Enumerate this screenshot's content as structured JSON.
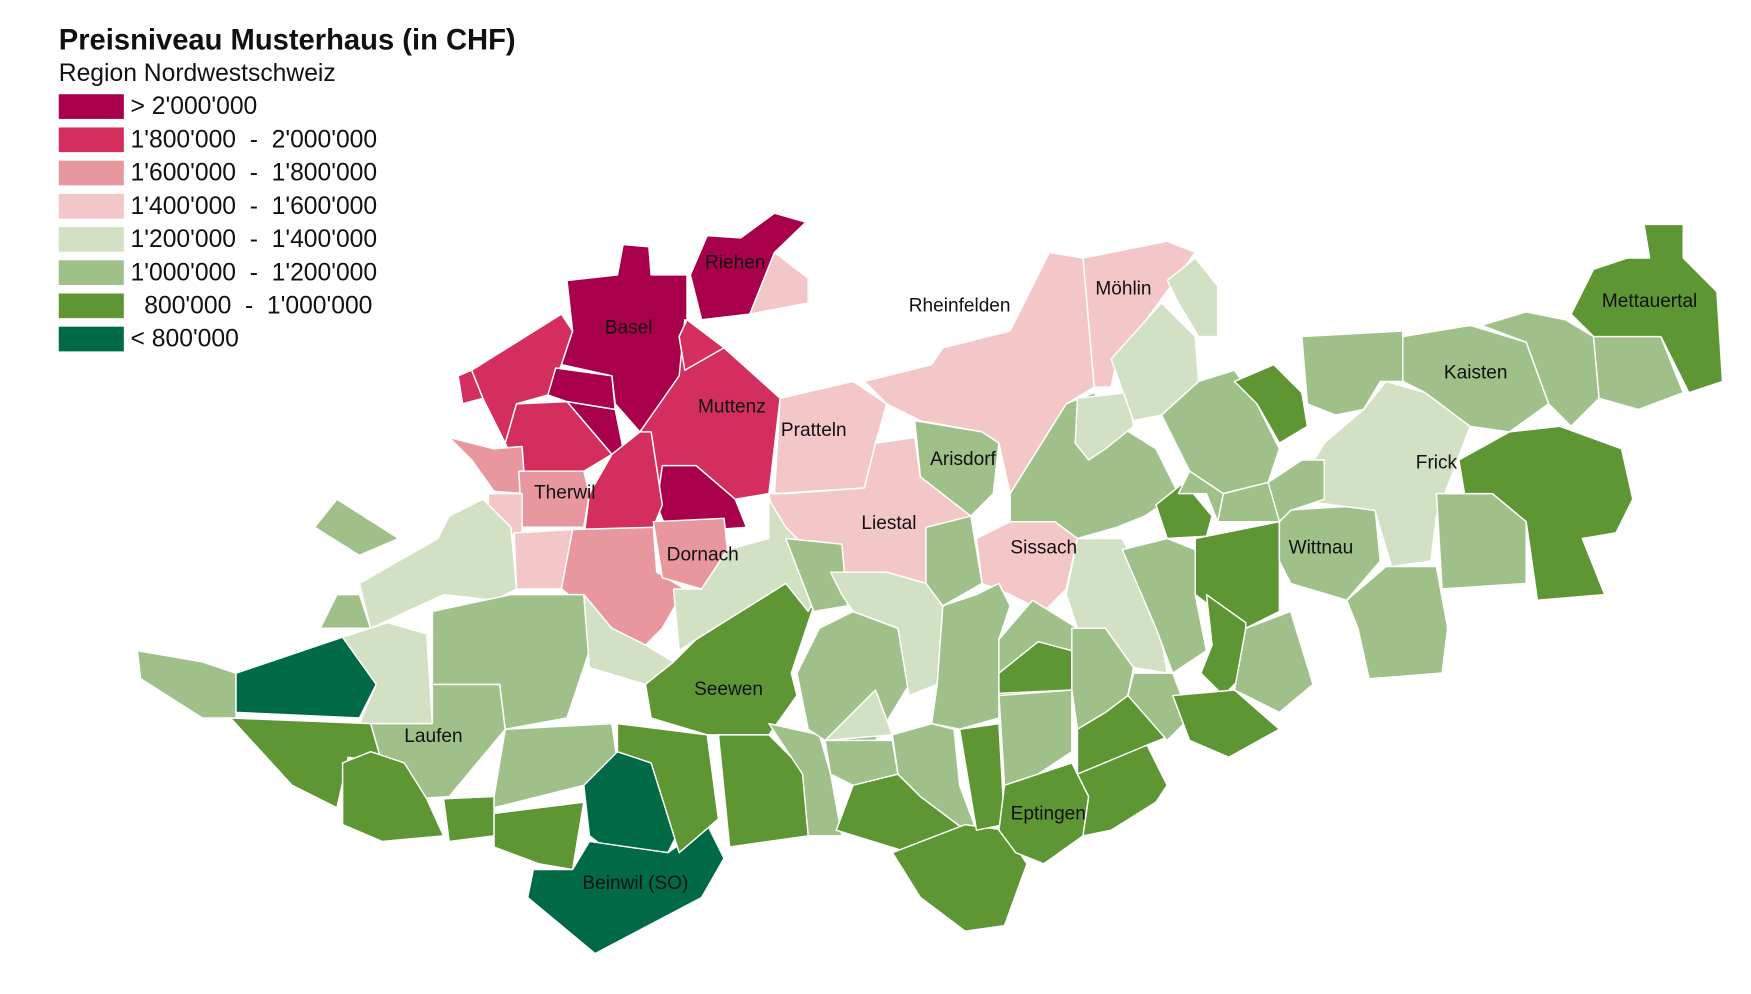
{
  "title": "Preisniveau Musterhaus (in CHF)",
  "subtitle": "Region Nordwestschweiz",
  "legend": [
    {
      "label": "> 2'000'000",
      "color": "#a8004a"
    },
    {
      "label": "1'800'000  -  2'000'000",
      "color": "#d42e5e"
    },
    {
      "label": "1'600'000  -  1'800'000",
      "color": "#e8979e"
    },
    {
      "label": "1'400'000  -  1'600'000",
      "color": "#f3c6c8"
    },
    {
      "label": "1'200'000  -  1'400'000",
      "color": "#d2e0c4"
    },
    {
      "label": "1'000'000  -  1'200'000",
      "color": "#a0c08a"
    },
    {
      "label": "  800'000  -  1'000'000",
      "color": "#5e9634"
    },
    {
      "label": "< 800'000",
      "color": "#006a46"
    }
  ],
  "places": [
    "Riehen",
    "Basel",
    "Muttenz",
    "Pratteln",
    "Therwil",
    "Dornach",
    "Arisdorf",
    "Liestal",
    "Rheinfelden",
    "Möhlin",
    "Sissach",
    "Mettauertal",
    "Kaisten",
    "Frick",
    "Wittnau",
    "Seewen",
    "Laufen",
    "Eptingen",
    "Beinwil (SO)"
  ]
}
